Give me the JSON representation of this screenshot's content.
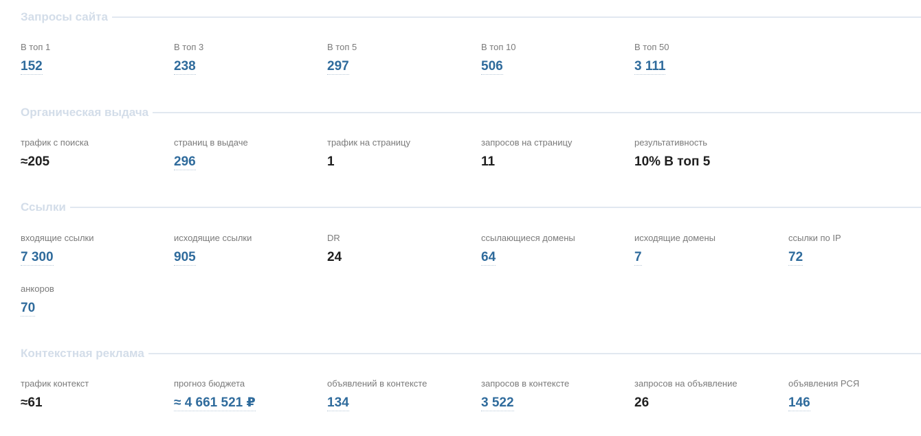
{
  "colors": {
    "section_title": "#d3dde9",
    "section_rule": "#e1e8f0",
    "label": "#7a7a7a",
    "link_value": "#2f6b9c",
    "plain_value": "#1f1f1f"
  },
  "sections": [
    {
      "title": "Запросы сайта",
      "metrics": [
        {
          "label": "В топ 1",
          "value": "152",
          "link": true
        },
        {
          "label": "В топ 3",
          "value": "238",
          "link": true
        },
        {
          "label": "В топ 5",
          "value": "297",
          "link": true
        },
        {
          "label": "В топ 10",
          "value": "506",
          "link": true
        },
        {
          "label": "В топ 50",
          "value": "3 111",
          "link": true
        }
      ]
    },
    {
      "title": "Органическая выдача",
      "metrics": [
        {
          "label": "трафик с поиска",
          "value": "≈205",
          "link": false
        },
        {
          "label": "страниц в выдаче",
          "value": "296",
          "link": true
        },
        {
          "label": "трафик на страницу",
          "value": "1",
          "link": false
        },
        {
          "label": "запросов на страницу",
          "value": "11",
          "link": false
        },
        {
          "label": "результативность",
          "value": "10% В топ 5",
          "link": false
        }
      ]
    },
    {
      "title": "Ссылки",
      "metrics": [
        {
          "label": "входящие ссылки",
          "value": "7 300",
          "link": true
        },
        {
          "label": "исходящие ссылки",
          "value": "905",
          "link": true
        },
        {
          "label": "DR",
          "value": "24",
          "link": false
        },
        {
          "label": "ссылающиеся домены",
          "value": "64",
          "link": true
        },
        {
          "label": "исходящие домены",
          "value": "7",
          "link": true
        },
        {
          "label": "ссылки по IP",
          "value": "72",
          "link": true
        },
        {
          "label": "анкоров",
          "value": "70",
          "link": true
        }
      ]
    },
    {
      "title": "Контекстная реклама",
      "metrics": [
        {
          "label": "трафик контекст",
          "value": "≈61",
          "link": false
        },
        {
          "label": "прогноз бюджета",
          "value": "≈ 4 661 521 ₽",
          "link": true
        },
        {
          "label": "объявлений в контексте",
          "value": "134",
          "link": true
        },
        {
          "label": "запросов в контексте",
          "value": "3 522",
          "link": true
        },
        {
          "label": "запросов на объявление",
          "value": "26",
          "link": false
        },
        {
          "label": "объявления РСЯ",
          "value": "146",
          "link": true
        }
      ]
    }
  ]
}
